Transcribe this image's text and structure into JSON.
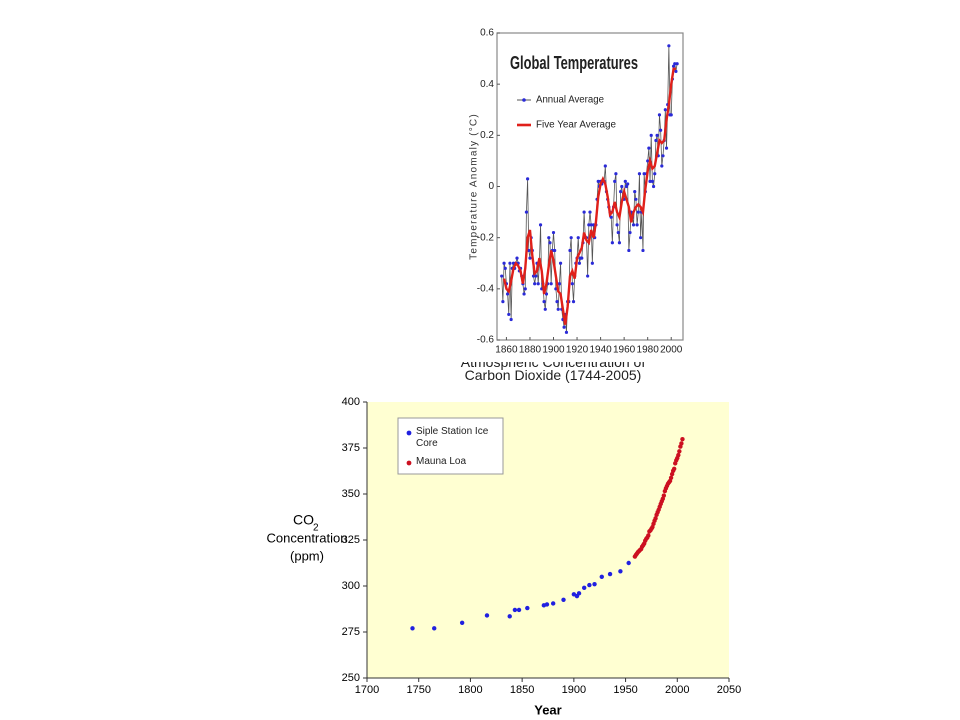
{
  "chart_data": [
    {
      "type": "line",
      "title": "Global Temperatures",
      "ylabel": "Temperature Anomaly (°C)",
      "xlim": [
        1852,
        2010
      ],
      "xticks": [
        1860,
        1880,
        1900,
        1920,
        1940,
        1960,
        1980,
        2000
      ],
      "ylim": [
        -0.6,
        0.6
      ],
      "yticks": [
        -0.6,
        -0.4,
        -0.2,
        0,
        0.2,
        0.4,
        0.6
      ],
      "legend": "upper left",
      "grid": false,
      "series": [
        {
          "name": "Annual Average",
          "color": "#2a2ad8",
          "line_color": "#555555",
          "marker": true,
          "x": [
            1856,
            1857,
            1858,
            1859,
            1860,
            1861,
            1862,
            1863,
            1864,
            1865,
            1866,
            1867,
            1868,
            1869,
            1870,
            1871,
            1872,
            1873,
            1874,
            1875,
            1876,
            1877,
            1878,
            1879,
            1880,
            1881,
            1882,
            1883,
            1884,
            1885,
            1886,
            1887,
            1888,
            1889,
            1890,
            1891,
            1892,
            1893,
            1894,
            1895,
            1896,
            1897,
            1898,
            1899,
            1900,
            1901,
            1902,
            1903,
            1904,
            1905,
            1906,
            1907,
            1908,
            1909,
            1910,
            1911,
            1912,
            1913,
            1914,
            1915,
            1916,
            1917,
            1918,
            1919,
            1920,
            1921,
            1922,
            1923,
            1924,
            1925,
            1926,
            1927,
            1928,
            1929,
            1930,
            1931,
            1932,
            1933,
            1934,
            1935,
            1936,
            1937,
            1938,
            1939,
            1940,
            1941,
            1942,
            1943,
            1944,
            1945,
            1946,
            1947,
            1948,
            1949,
            1950,
            1951,
            1952,
            1953,
            1954,
            1955,
            1956,
            1957,
            1958,
            1959,
            1960,
            1961,
            1962,
            1963,
            1964,
            1965,
            1966,
            1967,
            1968,
            1969,
            1970,
            1971,
            1972,
            1973,
            1974,
            1975,
            1976,
            1977,
            1978,
            1979,
            1980,
            1981,
            1982,
            1983,
            1984,
            1985,
            1986,
            1987,
            1988,
            1989,
            1990,
            1991,
            1992,
            1993,
            1994,
            1995,
            1996,
            1997,
            1998,
            1999,
            2000,
            2001,
            2002,
            2003,
            2004,
            2005
          ],
          "values": [
            -0.35,
            -0.45,
            -0.3,
            -0.32,
            -0.38,
            -0.42,
            -0.5,
            -0.3,
            -0.52,
            -0.32,
            -0.3,
            -0.32,
            -0.3,
            -0.28,
            -0.3,
            -0.33,
            -0.32,
            -0.35,
            -0.38,
            -0.42,
            -0.4,
            -0.1,
            0.03,
            -0.25,
            -0.28,
            -0.2,
            -0.25,
            -0.35,
            -0.38,
            -0.35,
            -0.3,
            -0.38,
            -0.3,
            -0.15,
            -0.4,
            -0.38,
            -0.45,
            -0.48,
            -0.42,
            -0.38,
            -0.2,
            -0.22,
            -0.38,
            -0.25,
            -0.18,
            -0.25,
            -0.4,
            -0.45,
            -0.48,
            -0.38,
            -0.3,
            -0.48,
            -0.52,
            -0.55,
            -0.5,
            -0.57,
            -0.45,
            -0.45,
            -0.25,
            -0.2,
            -0.38,
            -0.45,
            -0.35,
            -0.3,
            -0.28,
            -0.2,
            -0.3,
            -0.28,
            -0.28,
            -0.22,
            -0.1,
            -0.2,
            -0.2,
            -0.35,
            -0.15,
            -0.1,
            -0.15,
            -0.3,
            -0.15,
            -0.2,
            -0.15,
            -0.05,
            0.02,
            0,
            0.02,
            0.01,
            0.02,
            0.02,
            0.08,
            -0.02,
            -0.05,
            -0.08,
            -0.1,
            -0.12,
            -0.22,
            -0.08,
            0.02,
            0.05,
            -0.15,
            -0.18,
            -0.22,
            -0.02,
            0,
            -0.05,
            -0.05,
            0.02,
            0,
            0.01,
            -0.25,
            -0.18,
            -0.1,
            -0.12,
            -0.15,
            -0.02,
            -0.05,
            -0.15,
            -0.1,
            0.05,
            -0.2,
            -0.1,
            -0.25,
            0.05,
            -0.02,
            0.05,
            0.1,
            0.15,
            0.02,
            0.2,
            0.02,
            0,
            0.05,
            0.18,
            0.2,
            0.12,
            0.28,
            0.22,
            0.08,
            0.12,
            0.18,
            0.3,
            0.15,
            0.32,
            0.55,
            0.28,
            0.28,
            0.42,
            0.47,
            0.48,
            0.45,
            0.48
          ]
        },
        {
          "name": "Five Year Average",
          "color": "#e0201a",
          "line_color": "#e0201a",
          "marker": false,
          "x": [
            1858,
            1860,
            1862,
            1864,
            1866,
            1868,
            1870,
            1872,
            1874,
            1876,
            1878,
            1880,
            1882,
            1884,
            1886,
            1888,
            1890,
            1892,
            1894,
            1896,
            1898,
            1900,
            1902,
            1904,
            1906,
            1908,
            1910,
            1912,
            1914,
            1916,
            1918,
            1920,
            1922,
            1924,
            1926,
            1928,
            1930,
            1932,
            1934,
            1936,
            1938,
            1940,
            1942,
            1944,
            1946,
            1948,
            1950,
            1952,
            1954,
            1956,
            1958,
            1960,
            1962,
            1964,
            1966,
            1968,
            1970,
            1972,
            1974,
            1976,
            1978,
            1980,
            1982,
            1984,
            1986,
            1988,
            1990,
            1992,
            1994,
            1996,
            1998,
            2000,
            2002,
            2004
          ],
          "values": [
            -0.36,
            -0.4,
            -0.41,
            -0.37,
            -0.32,
            -0.3,
            -0.31,
            -0.33,
            -0.38,
            -0.32,
            -0.2,
            -0.17,
            -0.27,
            -0.34,
            -0.33,
            -0.28,
            -0.33,
            -0.42,
            -0.38,
            -0.31,
            -0.25,
            -0.29,
            -0.35,
            -0.41,
            -0.42,
            -0.48,
            -0.54,
            -0.47,
            -0.35,
            -0.33,
            -0.36,
            -0.28,
            -0.26,
            -0.24,
            -0.18,
            -0.21,
            -0.22,
            -0.17,
            -0.2,
            -0.14,
            -0.04,
            0.01,
            0.03,
            0.01,
            -0.04,
            -0.11,
            -0.1,
            -0.06,
            -0.1,
            -0.12,
            -0.06,
            -0.02,
            -0.05,
            -0.08,
            -0.14,
            -0.1,
            -0.08,
            -0.07,
            -0.08,
            -0.1,
            -0.01,
            0.06,
            0.1,
            0.07,
            0.08,
            0.13,
            0.18,
            0.17,
            0.18,
            0.26,
            0.32,
            0.4,
            0.46,
            0.46
          ]
        }
      ]
    },
    {
      "type": "scatter",
      "title": "Atmospheric Concentration of Carbon Dioxide (1744-2005)",
      "xlabel": "Year",
      "ylabel": [
        "CO",
        "2",
        "Concentration",
        "(ppm)"
      ],
      "xlim": [
        1700,
        2050
      ],
      "xticks": [
        1700,
        1750,
        1800,
        1850,
        1900,
        1950,
        2000,
        2050
      ],
      "ylim": [
        250,
        400
      ],
      "yticks": [
        250,
        275,
        300,
        325,
        350,
        375,
        400
      ],
      "legend": "upper left",
      "grid": false,
      "background": "#ffffd2",
      "series": [
        {
          "name": "Siple Station Ice Core",
          "color": "#2020e0",
          "x": [
            1744,
            1765,
            1792,
            1816,
            1838,
            1843,
            1847,
            1855,
            1871,
            1874,
            1880,
            1890,
            1900,
            1903,
            1905,
            1910,
            1915,
            1920,
            1927,
            1935,
            1945,
            1953
          ],
          "values": [
            277,
            277,
            280,
            284,
            283.5,
            287,
            287,
            288,
            289.5,
            290,
            290.5,
            292.5,
            295.5,
            294.5,
            296,
            299,
            300.5,
            301,
            305,
            306.5,
            308,
            312.5
          ]
        },
        {
          "name": "Mauna Loa",
          "color": "#cc1020",
          "x": [
            1959,
            1960,
            1961,
            1962,
            1963,
            1964,
            1965,
            1966,
            1967,
            1968,
            1969,
            1970,
            1971,
            1972,
            1973,
            1974,
            1975,
            1976,
            1977,
            1978,
            1979,
            1980,
            1981,
            1982,
            1983,
            1984,
            1985,
            1986,
            1987,
            1988,
            1989,
            1990,
            1991,
            1992,
            1993,
            1994,
            1995,
            1996,
            1997,
            1998,
            1999,
            2000,
            2001,
            2002,
            2003,
            2004,
            2005
          ],
          "values": [
            315.98,
            316.91,
            317.64,
            318.45,
            318.99,
            319.62,
            320.04,
            321.38,
            322.16,
            323.04,
            324.62,
            325.68,
            326.32,
            327.45,
            329.68,
            330.18,
            331.08,
            332.05,
            333.78,
            335.41,
            336.78,
            338.68,
            340.1,
            341.44,
            343.03,
            344.58,
            346.04,
            347.39,
            349.16,
            351.56,
            353.07,
            354.35,
            355.57,
            356.38,
            357.07,
            358.82,
            360.8,
            362.59,
            363.71,
            366.65,
            368.33,
            369.52,
            371.13,
            373.22,
            375.77,
            377.49,
            379.8
          ]
        }
      ]
    }
  ]
}
